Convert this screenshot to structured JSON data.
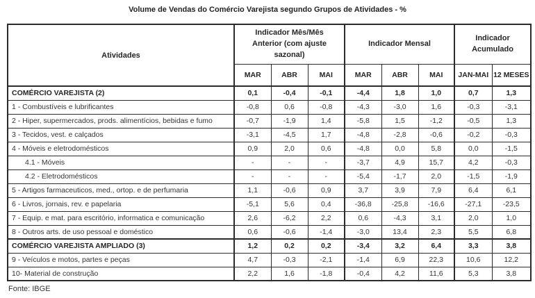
{
  "chart_data": {
    "type": "table",
    "title": "Volume de Vendas do Comércio Varejista segundo Grupos de Atividades - %",
    "columns_label": "Atividades",
    "groups": [
      {
        "label": "Indicador Mês/Mês Anterior (com ajuste sazonal)",
        "cols": [
          "MAR",
          "ABR",
          "MAI"
        ]
      },
      {
        "label": "Indicador Mensal",
        "cols": [
          "MAR",
          "ABR",
          "MAI"
        ]
      },
      {
        "label": "Indicador Acumulado",
        "cols": [
          "JAN-MAI",
          "12 MESES"
        ]
      }
    ],
    "rows": [
      {
        "label": "COMÉRCIO VAREJISTA (2)",
        "bold": true,
        "section": true,
        "indent": false,
        "values": [
          "0,1",
          "-0,4",
          "-0,1",
          "-4,4",
          "1,8",
          "1,0",
          "0,7",
          "1,3"
        ]
      },
      {
        "label": "1 - Combustíveis e lubrificantes",
        "bold": false,
        "section": false,
        "indent": false,
        "values": [
          "-0,8",
          "0,6",
          "-0,8",
          "-4,3",
          "-3,0",
          "1,6",
          "-0,3",
          "-3,1"
        ]
      },
      {
        "label": "2 - Hiper, supermercados, prods. alimentícios, bebidas e fumo",
        "bold": false,
        "section": false,
        "indent": false,
        "values": [
          "-0,7",
          "-1,9",
          "1,4",
          "-5,8",
          "1,5",
          "-1,2",
          "-0,5",
          "1,3"
        ]
      },
      {
        "label": "3 - Tecidos, vest. e calçados",
        "bold": false,
        "section": false,
        "indent": false,
        "values": [
          "-3,1",
          "-4,5",
          "1,7",
          "-4,8",
          "-2,8",
          "-0,6",
          "-0,2",
          "-0,3"
        ]
      },
      {
        "label": "4 - Móveis e eletrodomésticos",
        "bold": false,
        "section": false,
        "indent": false,
        "values": [
          "0,9",
          "2,0",
          "0,6",
          "-4,8",
          "0,0",
          "5,8",
          "0,0",
          "-1,5"
        ]
      },
      {
        "label": "4.1 - Móveis",
        "bold": false,
        "section": false,
        "indent": true,
        "values": [
          "-",
          "-",
          "-",
          "-3,7",
          "4,9",
          "15,7",
          "4,2",
          "-0,3"
        ]
      },
      {
        "label": "4.2 - Eletrodomésticos",
        "bold": false,
        "section": false,
        "indent": true,
        "values": [
          "-",
          "-",
          "-",
          "-5,4",
          "-1,7",
          "2,0",
          "-1,5",
          "-1,9"
        ]
      },
      {
        "label": "5 - Artigos farmaceuticos, med., ortop. e de perfumaria",
        "bold": false,
        "section": false,
        "indent": false,
        "values": [
          "1,1",
          "-0,6",
          "0,9",
          "3,7",
          "3,9",
          "7,9",
          "6,4",
          "6,1"
        ]
      },
      {
        "label": "6 - Livros, jornais, rev. e papelaria",
        "bold": false,
        "section": false,
        "indent": false,
        "values": [
          "-5,1",
          "5,6",
          "0,4",
          "-36,8",
          "-25,8",
          "-16,6",
          "-27,1",
          "-23,5"
        ]
      },
      {
        "label": "7 - Equip. e mat. para escritório, informatica e comunicação",
        "bold": false,
        "section": false,
        "indent": false,
        "values": [
          "2,6",
          "-6,2",
          "2,2",
          "0,6",
          "-4,3",
          "3,1",
          "2,0",
          "1,0"
        ]
      },
      {
        "label": "8 - Outros arts. de uso pessoal e doméstico",
        "bold": false,
        "section": false,
        "indent": false,
        "values": [
          "0,6",
          "-0,6",
          "-1,4",
          "-3,0",
          "13,4",
          "2,3",
          "5,5",
          "6,8"
        ]
      },
      {
        "label": "COMÉRCIO VAREJISTA AMPLIADO (3)",
        "bold": true,
        "section": true,
        "indent": false,
        "values": [
          "1,2",
          "0,2",
          "0,2",
          "-3,4",
          "3,2",
          "6,4",
          "3,3",
          "3,8"
        ]
      },
      {
        "label": "9 - Veículos e motos, partes e peças",
        "bold": false,
        "section": false,
        "indent": false,
        "values": [
          "4,7",
          "-0,3",
          "-2,1",
          "-1,4",
          "6,9",
          "22,3",
          "10,6",
          "12,2"
        ]
      },
      {
        "label": "10- Material de construção",
        "bold": false,
        "section": false,
        "indent": false,
        "values": [
          "2,2",
          "1,6",
          "-1,8",
          "-0,4",
          "4,2",
          "11,6",
          "5,3",
          "3,8"
        ]
      }
    ],
    "source": "Fonte: IBGE",
    "layout": {
      "grid": true,
      "border_color": "#2b2b2b",
      "text_color": "#333333",
      "background": "#ffffff"
    }
  }
}
